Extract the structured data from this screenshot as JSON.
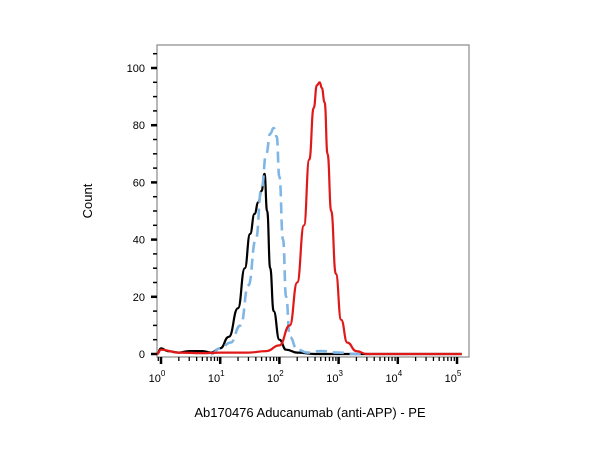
{
  "chart_data": {
    "type": "line",
    "title": "",
    "xlabel": "Ab170476 Aducanumab (anti-APP) - PE",
    "ylabel": "Count",
    "x_scale": "log",
    "xlim": [
      0.8,
      120000
    ],
    "ylim": [
      0,
      107
    ],
    "grid": false,
    "legend": "none",
    "x_ticks": [
      "10^0",
      "10^1",
      "10^2",
      "10^3",
      "10^4",
      "10^5"
    ],
    "y_ticks": [
      "0",
      "20",
      "40",
      "60",
      "80",
      "100"
    ],
    "series": [
      {
        "name": "black-solid",
        "color": "#000000",
        "style": "solid",
        "x": [
          0.8,
          1.0,
          1.3,
          2,
          3,
          5,
          7,
          10,
          14,
          20,
          26,
          32,
          38,
          44,
          50,
          56,
          62,
          70,
          80,
          100,
          130,
          200,
          400,
          1000,
          120000
        ],
        "y": [
          0,
          2,
          1,
          0.5,
          1,
          1,
          0.5,
          2,
          6,
          16,
          30,
          42,
          49,
          53,
          57,
          63,
          50,
          30,
          15,
          5,
          1.5,
          0.5,
          0,
          0,
          0
        ]
      },
      {
        "name": "lightblue-dashed",
        "color": "#7fb6e6",
        "style": "dashed",
        "x": [
          7,
          10,
          15,
          22,
          30,
          40,
          50,
          60,
          70,
          80,
          90,
          100,
          115,
          130,
          150,
          200,
          300,
          500,
          1000,
          2000,
          3000
        ],
        "y": [
          0,
          2,
          4,
          10,
          24,
          40,
          58,
          70,
          77,
          79,
          76,
          62,
          40,
          20,
          6,
          1.5,
          0.5,
          1,
          0.5,
          0,
          0
        ]
      },
      {
        "name": "red-solid",
        "color": "#e01818",
        "style": "solid",
        "x": [
          0.8,
          1.0,
          2,
          5,
          10,
          30,
          60,
          100,
          150,
          200,
          260,
          320,
          380,
          430,
          480,
          520,
          580,
          650,
          750,
          900,
          1100,
          1400,
          2000,
          3000,
          120000
        ],
        "y": [
          0,
          1.5,
          0.5,
          0.3,
          0.5,
          0.5,
          1,
          3,
          10,
          25,
          45,
          68,
          86,
          94,
          95,
          93,
          88,
          70,
          50,
          28,
          12,
          4,
          1,
          0,
          0
        ]
      }
    ]
  },
  "axes": {
    "ylabel": "Count",
    "xlabel": "Ab170476 Aducanumab (anti-APP) - PE",
    "y_ticks": [
      {
        "label": "0",
        "value": 0
      },
      {
        "label": "20",
        "value": 20
      },
      {
        "label": "40",
        "value": 40
      },
      {
        "label": "60",
        "value": 60
      },
      {
        "label": "80",
        "value": 80
      },
      {
        "label": "100",
        "value": 100
      }
    ],
    "x_ticks": [
      {
        "base": "10",
        "exp": "0"
      },
      {
        "base": "10",
        "exp": "1"
      },
      {
        "base": "10",
        "exp": "2"
      },
      {
        "base": "10",
        "exp": "3"
      },
      {
        "base": "10",
        "exp": "4"
      },
      {
        "base": "10",
        "exp": "5"
      }
    ]
  }
}
